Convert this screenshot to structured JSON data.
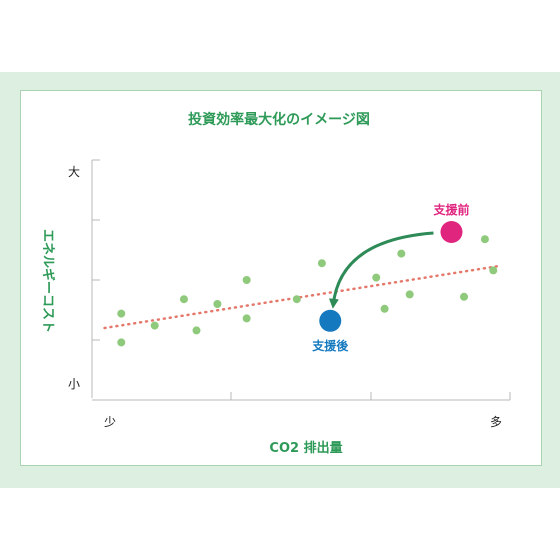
{
  "colors": {
    "title": "#2e9a58",
    "point": "#8fc97b",
    "trend": "#e4786a",
    "before": "#e0257f",
    "after": "#1479bf",
    "arrow": "#2e8b57",
    "axis": "#b9b9b9",
    "band": "#dcefe0"
  },
  "chart_data": {
    "type": "scatter",
    "title": "投資効率最大化のイメージ図",
    "xlabel": "CO2 排出量",
    "ylabel": "エネルギーコスト",
    "x_tick_labels": {
      "min": "少",
      "max": "多"
    },
    "y_tick_labels": {
      "max": "大",
      "min": "小"
    },
    "xlim": [
      0,
      100
    ],
    "ylim": [
      0,
      100
    ],
    "grid": false,
    "points": [
      {
        "x": 7,
        "y": 36
      },
      {
        "x": 7,
        "y": 24
      },
      {
        "x": 15,
        "y": 31
      },
      {
        "x": 22,
        "y": 42
      },
      {
        "x": 25,
        "y": 29
      },
      {
        "x": 30,
        "y": 40
      },
      {
        "x": 37,
        "y": 50
      },
      {
        "x": 37,
        "y": 34
      },
      {
        "x": 49,
        "y": 42
      },
      {
        "x": 55,
        "y": 57
      },
      {
        "x": 68,
        "y": 51
      },
      {
        "x": 70,
        "y": 38
      },
      {
        "x": 74,
        "y": 61
      },
      {
        "x": 76,
        "y": 44
      },
      {
        "x": 89,
        "y": 43
      },
      {
        "x": 94,
        "y": 67
      },
      {
        "x": 96,
        "y": 54
      }
    ],
    "trendline": {
      "from": {
        "x": 3,
        "y": 30
      },
      "to": {
        "x": 98,
        "y": 56
      },
      "style": "dotted"
    },
    "highlights": [
      {
        "id": "before",
        "label": "支援前",
        "x": 86,
        "y": 70
      },
      {
        "id": "after",
        "label": "支援後",
        "x": 57,
        "y": 33
      }
    ],
    "arrow": {
      "from": "before",
      "to": "after"
    }
  }
}
